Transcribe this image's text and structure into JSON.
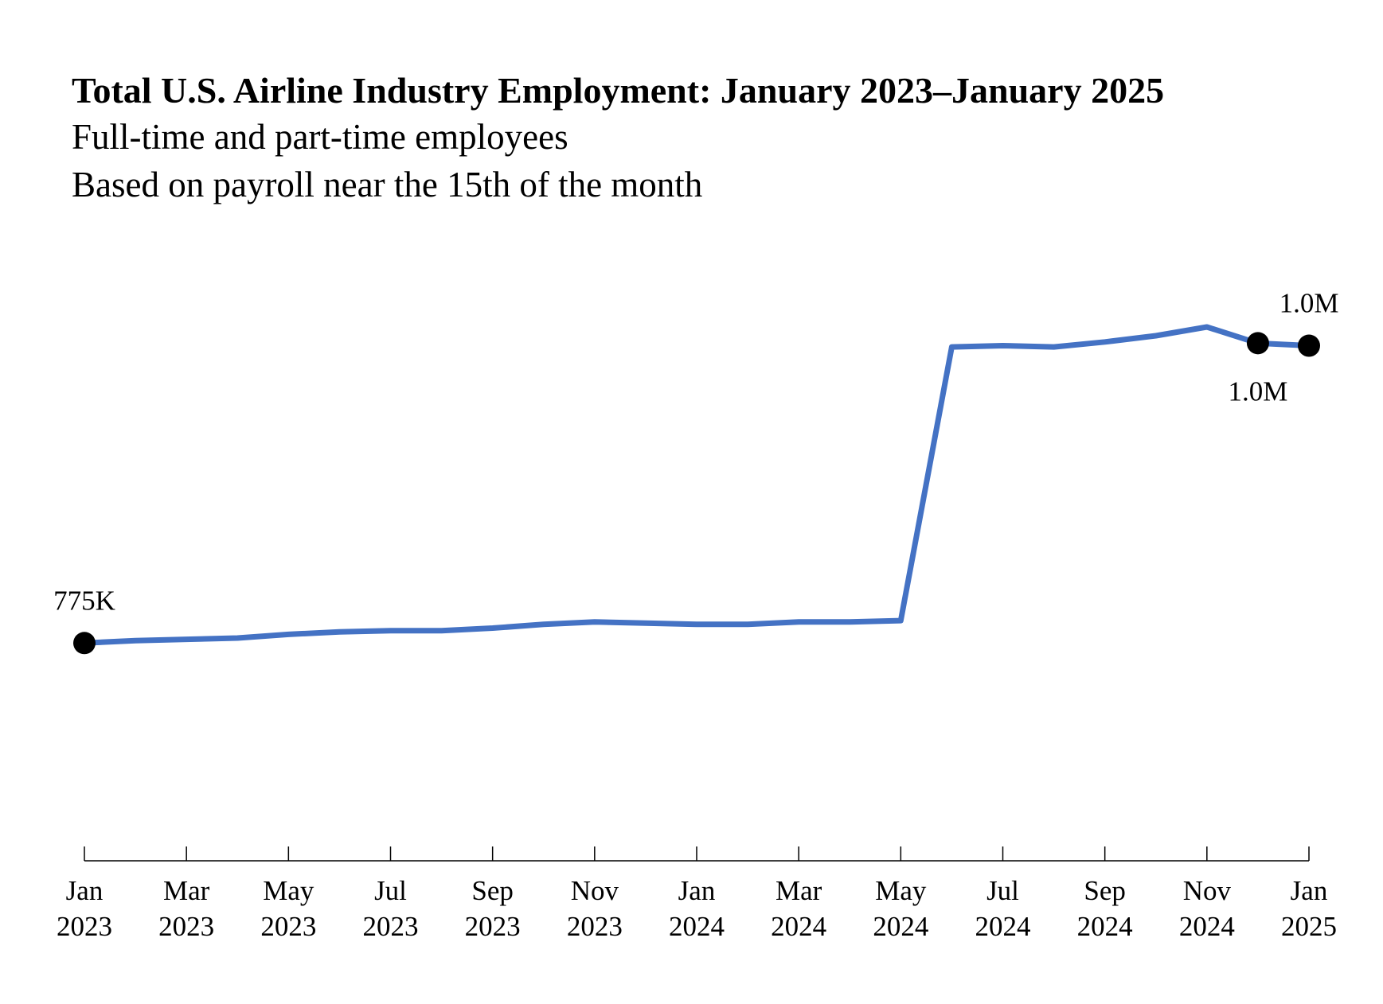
{
  "chart_data": {
    "type": "line",
    "title": "Total U.S. Airline Industry Employment: January 2023–January 2025",
    "subtitle_lines": [
      "Full-time and part-time employees",
      "Based on payroll near the 15th of the month"
    ],
    "x": [
      "2023-01",
      "2023-02",
      "2023-03",
      "2023-04",
      "2023-05",
      "2023-06",
      "2023-07",
      "2023-08",
      "2023-09",
      "2023-10",
      "2023-11",
      "2023-12",
      "2024-01",
      "2024-02",
      "2024-03",
      "2024-04",
      "2024-05",
      "2024-06",
      "2024-07",
      "2024-08",
      "2024-09",
      "2024-10",
      "2024-11",
      "2024-12",
      "2025-01"
    ],
    "series": [
      {
        "color": "#4472c4",
        "values": [
          775000,
          777000,
          778000,
          779000,
          782000,
          784000,
          785000,
          785000,
          787000,
          790000,
          792000,
          791000,
          790000,
          790000,
          792000,
          792000,
          793000,
          1013000,
          1014000,
          1013000,
          1017000,
          1022000,
          1029000,
          1016000,
          1014000
        ]
      }
    ],
    "x_ticks": [
      {
        "month": "Jan",
        "year": "2023",
        "x": "2023-01"
      },
      {
        "month": "Mar",
        "year": "2023",
        "x": "2023-03"
      },
      {
        "month": "May",
        "year": "2023",
        "x": "2023-05"
      },
      {
        "month": "Jul",
        "year": "2023",
        "x": "2023-07"
      },
      {
        "month": "Sep",
        "year": "2023",
        "x": "2023-09"
      },
      {
        "month": "Nov",
        "year": "2023",
        "x": "2023-11"
      },
      {
        "month": "Jan",
        "year": "2024",
        "x": "2024-01"
      },
      {
        "month": "Mar",
        "year": "2024",
        "x": "2024-03"
      },
      {
        "month": "May",
        "year": "2024",
        "x": "2024-05"
      },
      {
        "month": "Jul",
        "year": "2024",
        "x": "2024-07"
      },
      {
        "month": "Sep",
        "year": "2024",
        "x": "2024-09"
      },
      {
        "month": "Nov",
        "year": "2024",
        "x": "2024-11"
      },
      {
        "month": "Jan",
        "year": "2025",
        "x": "2025-01"
      }
    ],
    "annotations": [
      {
        "x": "2023-01",
        "text": "775K",
        "position": "above"
      },
      {
        "x": "2024-12",
        "text": "1.0M",
        "position": "below"
      },
      {
        "x": "2025-01",
        "text": "1.0M",
        "position": "above"
      }
    ],
    "ylim": [
      600000,
      1100000
    ],
    "grid": false,
    "legend": "none"
  }
}
